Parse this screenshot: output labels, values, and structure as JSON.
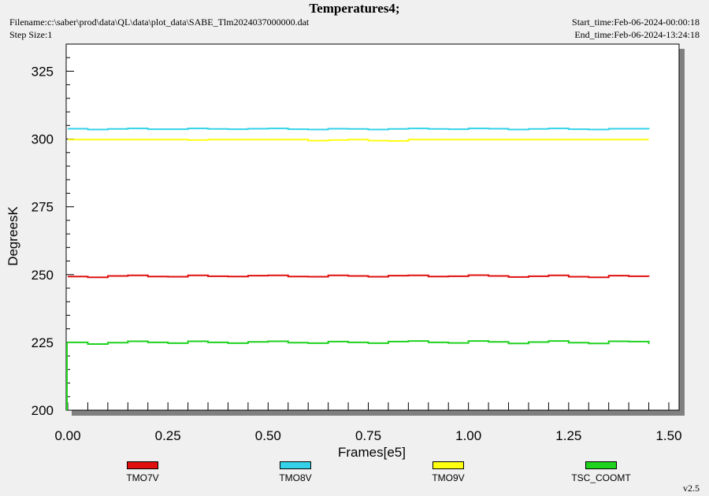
{
  "header": {
    "title": "Temperatures4;",
    "filename": "Filename:c:\\saber\\prod\\data\\QL\\data\\plot_data\\SABE_Tlm2024037000000.dat",
    "step_size": "Step Size:1",
    "start_time": "Start_time:Feb-06-2024-00:00:18",
    "end_time": "End_time:Feb-06-2024-13:24:18"
  },
  "version": "v2.5",
  "chart_data": {
    "type": "line",
    "title": "Temperatures4;",
    "xlabel": "Frames[e5]",
    "ylabel": "DegreesK",
    "xlim": [
      0.0,
      1.5
    ],
    "ylim": [
      200,
      335
    ],
    "x_ticks": [
      "0.00",
      "0.25",
      "0.50",
      "0.75",
      "1.00",
      "1.25",
      "1.50"
    ],
    "y_ticks": [
      "200",
      "225",
      "250",
      "275",
      "300",
      "325"
    ],
    "grid": false,
    "legend_position": "bottom",
    "series": [
      {
        "name": "TMO7V",
        "color": "#e01010",
        "x": [
          0.0,
          0.05,
          0.1,
          0.15,
          0.2,
          0.25,
          0.3,
          0.35,
          0.4,
          0.45,
          0.5,
          0.55,
          0.6,
          0.65,
          0.7,
          0.75,
          0.8,
          0.85,
          0.9,
          0.95,
          1.0,
          1.05,
          1.1,
          1.15,
          1.2,
          1.25,
          1.3,
          1.35,
          1.4,
          1.45
        ],
        "values": [
          249.3,
          249.0,
          249.5,
          249.7,
          249.3,
          249.2,
          249.7,
          249.4,
          249.3,
          249.6,
          249.7,
          249.3,
          249.2,
          249.7,
          249.5,
          249.2,
          249.6,
          249.7,
          249.3,
          249.4,
          249.8,
          249.5,
          249.1,
          249.4,
          249.7,
          249.2,
          249.0,
          249.6,
          249.4,
          249.3
        ]
      },
      {
        "name": "TMO8V",
        "color": "#33d2e8",
        "x": [
          0.0,
          0.05,
          0.1,
          0.15,
          0.2,
          0.25,
          0.3,
          0.35,
          0.4,
          0.45,
          0.5,
          0.55,
          0.6,
          0.65,
          0.7,
          0.75,
          0.8,
          0.85,
          0.9,
          0.95,
          1.0,
          1.05,
          1.1,
          1.15,
          1.2,
          1.25,
          1.3,
          1.35,
          1.4,
          1.45
        ],
        "values": [
          303.8,
          303.5,
          303.7,
          303.9,
          303.6,
          303.6,
          303.9,
          303.7,
          303.6,
          303.8,
          303.9,
          303.6,
          303.5,
          303.8,
          303.7,
          303.5,
          303.7,
          303.9,
          303.7,
          303.6,
          303.9,
          303.8,
          303.5,
          303.7,
          303.9,
          303.6,
          303.5,
          303.8,
          303.8,
          303.6
        ]
      },
      {
        "name": "TMO9V",
        "color": "#ffff10",
        "x": [
          0.0,
          0.05,
          0.1,
          0.15,
          0.2,
          0.25,
          0.3,
          0.35,
          0.4,
          0.45,
          0.5,
          0.55,
          0.6,
          0.65,
          0.7,
          0.75,
          0.8,
          0.85,
          0.9,
          0.95,
          1.0,
          1.05,
          1.1,
          1.15,
          1.2,
          1.25,
          1.3,
          1.35,
          1.4,
          1.45
        ],
        "values": [
          299.8,
          299.8,
          299.8,
          299.8,
          299.8,
          299.8,
          299.6,
          299.8,
          299.8,
          299.8,
          299.8,
          299.8,
          299.4,
          299.6,
          299.8,
          299.4,
          299.3,
          299.8,
          299.8,
          299.8,
          299.8,
          299.8,
          299.8,
          299.8,
          299.8,
          299.8,
          299.8,
          299.8,
          299.8,
          299.8
        ]
      },
      {
        "name": "TSC_COOMT",
        "color": "#1ed21e",
        "x": [
          0.0,
          0.05,
          0.1,
          0.15,
          0.2,
          0.25,
          0.3,
          0.35,
          0.4,
          0.45,
          0.5,
          0.55,
          0.6,
          0.65,
          0.7,
          0.75,
          0.8,
          0.85,
          0.9,
          0.95,
          1.0,
          1.05,
          1.1,
          1.15,
          1.2,
          1.25,
          1.3,
          1.35,
          1.4,
          1.45
        ],
        "values": [
          225.0,
          224.4,
          224.9,
          225.4,
          225.0,
          224.7,
          225.4,
          225.0,
          224.7,
          225.2,
          225.4,
          224.9,
          224.7,
          225.3,
          225.0,
          224.7,
          225.3,
          225.5,
          225.0,
          224.8,
          225.5,
          225.2,
          224.6,
          225.1,
          225.5,
          224.9,
          224.6,
          225.4,
          225.3,
          224.4
        ]
      }
    ]
  }
}
